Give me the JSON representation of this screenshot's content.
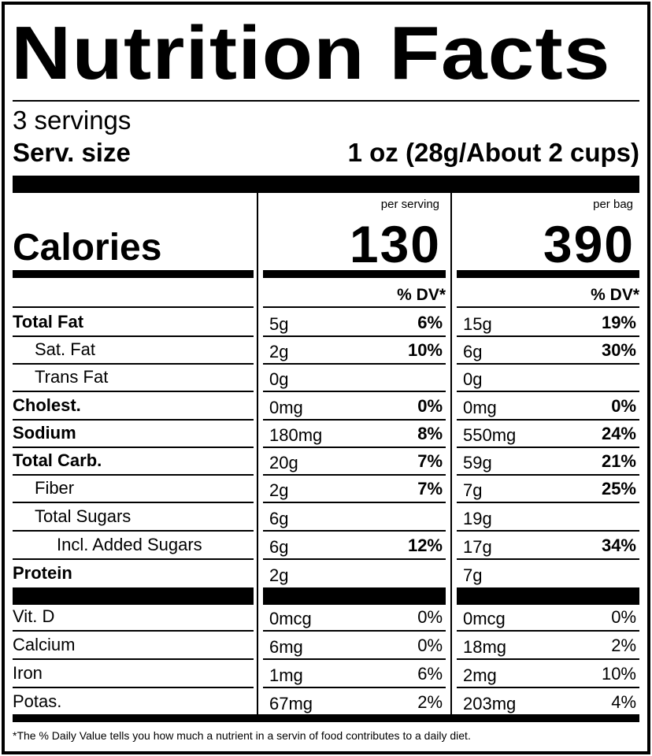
{
  "label": {
    "title": "Nutrition Facts",
    "servings": "3 servings",
    "serving_size_label": "Serv. size",
    "serving_size_value": "1 oz (28g/About 2 cups)",
    "calories_label": "Calories",
    "column_headers": [
      "per serving",
      "per bag"
    ],
    "calories_values": [
      "130",
      "390"
    ],
    "dv_header": "% DV*",
    "nutrients": [
      {
        "label": "Total Fat",
        "bold": true,
        "indent": 0,
        "serving": {
          "amount": "5g",
          "dv": "6%"
        },
        "bag": {
          "amount": "15g",
          "dv": "19%"
        }
      },
      {
        "label": "Sat. Fat",
        "bold": false,
        "indent": 1,
        "serving": {
          "amount": "2g",
          "dv": "10%"
        },
        "bag": {
          "amount": "6g",
          "dv": "30%"
        }
      },
      {
        "label": "Trans Fat",
        "bold": false,
        "indent": 1,
        "serving": {
          "amount": "0g",
          "dv": ""
        },
        "bag": {
          "amount": "0g",
          "dv": ""
        }
      },
      {
        "label": "Cholest.",
        "bold": true,
        "indent": 0,
        "serving": {
          "amount": "0mg",
          "dv": "0%"
        },
        "bag": {
          "amount": "0mg",
          "dv": "0%"
        }
      },
      {
        "label": "Sodium",
        "bold": true,
        "indent": 0,
        "serving": {
          "amount": "180mg",
          "dv": "8%"
        },
        "bag": {
          "amount": "550mg",
          "dv": "24%"
        }
      },
      {
        "label": "Total Carb.",
        "bold": true,
        "indent": 0,
        "serving": {
          "amount": "20g",
          "dv": "7%"
        },
        "bag": {
          "amount": "59g",
          "dv": "21%"
        }
      },
      {
        "label": "Fiber",
        "bold": false,
        "indent": 1,
        "serving": {
          "amount": "2g",
          "dv": "7%"
        },
        "bag": {
          "amount": "7g",
          "dv": "25%"
        }
      },
      {
        "label": "Total Sugars",
        "bold": false,
        "indent": 1,
        "serving": {
          "amount": "6g",
          "dv": ""
        },
        "bag": {
          "amount": "19g",
          "dv": ""
        }
      },
      {
        "label": "Incl. Added Sugars",
        "bold": false,
        "indent": 2,
        "serving": {
          "amount": "6g",
          "dv": "12%"
        },
        "bag": {
          "amount": "17g",
          "dv": "34%"
        }
      },
      {
        "label": "Protein",
        "bold": true,
        "indent": 0,
        "serving": {
          "amount": "2g",
          "dv": ""
        },
        "bag": {
          "amount": "7g",
          "dv": ""
        }
      }
    ],
    "vitamins": [
      {
        "label": "Vit. D",
        "serving": {
          "amount": "0mcg",
          "dv": "0%"
        },
        "bag": {
          "amount": "0mcg",
          "dv": "0%"
        }
      },
      {
        "label": "Calcium",
        "serving": {
          "amount": "6mg",
          "dv": "0%"
        },
        "bag": {
          "amount": "18mg",
          "dv": "2%"
        }
      },
      {
        "label": "Iron",
        "serving": {
          "amount": "1mg",
          "dv": "6%"
        },
        "bag": {
          "amount": "2mg",
          "dv": "10%"
        }
      },
      {
        "label": "Potas.",
        "serving": {
          "amount": "67mg",
          "dv": "2%"
        },
        "bag": {
          "amount": "203mg",
          "dv": "4%"
        }
      }
    ],
    "footnote": "*The % Daily Value tells you how much a nutrient in a servin   of food contributes to a daily diet."
  }
}
